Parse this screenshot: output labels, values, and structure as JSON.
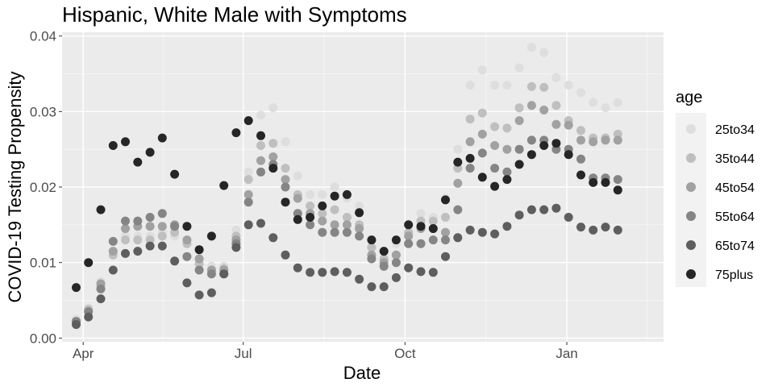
{
  "chart_data": {
    "type": "scatter",
    "title": "Hispanic, White Male with Symptoms",
    "xlabel": "Date",
    "ylabel": "COVID-19 Testing Propensity",
    "x_axis": {
      "type": "date",
      "range": [
        "2020-03-20",
        "2021-02-25"
      ],
      "ticks": [
        {
          "date": "2020-04-01",
          "label": "Apr"
        },
        {
          "date": "2020-07-01",
          "label": "Jul"
        },
        {
          "date": "2020-10-01",
          "label": "Oct"
        },
        {
          "date": "2021-01-01",
          "label": "Jan"
        }
      ]
    },
    "y_axis": {
      "range": [
        -0.0005,
        0.0405
      ],
      "ticks": [
        {
          "value": 0.0,
          "label": "0.00"
        },
        {
          "value": 0.01,
          "label": "0.01"
        },
        {
          "value": 0.02,
          "label": "0.02"
        },
        {
          "value": 0.03,
          "label": "0.03"
        },
        {
          "value": 0.04,
          "label": "0.04"
        }
      ]
    },
    "grid": true,
    "legend": {
      "title": "age",
      "position": "right"
    },
    "dates": [
      "2020-03-28",
      "2020-04-04",
      "2020-04-11",
      "2020-04-18",
      "2020-04-25",
      "2020-05-02",
      "2020-05-09",
      "2020-05-16",
      "2020-05-23",
      "2020-05-30",
      "2020-06-06",
      "2020-06-13",
      "2020-06-20",
      "2020-06-27",
      "2020-07-04",
      "2020-07-11",
      "2020-07-18",
      "2020-07-25",
      "2020-08-01",
      "2020-08-08",
      "2020-08-15",
      "2020-08-22",
      "2020-08-29",
      "2020-09-05",
      "2020-09-12",
      "2020-09-19",
      "2020-09-26",
      "2020-10-03",
      "2020-10-10",
      "2020-10-17",
      "2020-10-24",
      "2020-10-31",
      "2020-11-07",
      "2020-11-14",
      "2020-11-21",
      "2020-11-28",
      "2020-12-05",
      "2020-12-12",
      "2020-12-19",
      "2020-12-26",
      "2021-01-02",
      "2021-01-09",
      "2021-01-16",
      "2021-01-23",
      "2021-01-30"
    ],
    "series": [
      {
        "name": "25to34",
        "color": "#dedede",
        "values": [
          0.0025,
          0.004,
          0.0075,
          0.0115,
          0.0135,
          0.0135,
          0.0135,
          0.014,
          0.0135,
          0.013,
          0.01,
          0.0095,
          0.0095,
          0.0143,
          0.022,
          0.0295,
          0.0305,
          0.026,
          0.0215,
          0.019,
          0.019,
          0.02,
          0.0185,
          0.0175,
          0.013,
          0.0115,
          0.0125,
          0.015,
          0.0165,
          0.016,
          0.0185,
          0.025,
          0.0335,
          0.0355,
          0.0335,
          0.0335,
          0.0358,
          0.0385,
          0.0378,
          0.0345,
          0.0335,
          0.0325,
          0.0312,
          0.0305,
          0.0312
        ]
      },
      {
        "name": "35to44",
        "color": "#bfbfbf",
        "values": [
          0.0022,
          0.0038,
          0.007,
          0.011,
          0.013,
          0.013,
          0.013,
          0.0135,
          0.014,
          0.0125,
          0.0098,
          0.009,
          0.0092,
          0.0135,
          0.021,
          0.0255,
          0.0258,
          0.0225,
          0.019,
          0.0175,
          0.0165,
          0.017,
          0.016,
          0.015,
          0.012,
          0.0105,
          0.011,
          0.014,
          0.0155,
          0.0155,
          0.016,
          0.0225,
          0.029,
          0.0298,
          0.028,
          0.0278,
          0.0305,
          0.0333,
          0.0332,
          0.0308,
          0.0288,
          0.0275,
          0.0265,
          0.0265,
          0.027
        ]
      },
      {
        "name": "45to54",
        "color": "#a1a1a1",
        "values": [
          0.0022,
          0.0035,
          0.0072,
          0.0115,
          0.0145,
          0.0148,
          0.0148,
          0.0148,
          0.015,
          0.013,
          0.0105,
          0.009,
          0.009,
          0.013,
          0.019,
          0.0235,
          0.024,
          0.021,
          0.0185,
          0.0165,
          0.0155,
          0.015,
          0.015,
          0.0145,
          0.011,
          0.01,
          0.011,
          0.0135,
          0.0145,
          0.0145,
          0.014,
          0.0205,
          0.026,
          0.027,
          0.0255,
          0.025,
          0.0288,
          0.0308,
          0.0302,
          0.0283,
          0.0282,
          0.0262,
          0.026,
          0.0262,
          0.0262
        ]
      },
      {
        "name": "55to64",
        "color": "#858585",
        "values": [
          0.0022,
          0.0035,
          0.0065,
          0.0128,
          0.0155,
          0.0155,
          0.016,
          0.0165,
          0.0148,
          0.0108,
          0.009,
          0.0085,
          0.0085,
          0.0125,
          0.018,
          0.022,
          0.023,
          0.02,
          0.0165,
          0.015,
          0.014,
          0.014,
          0.014,
          0.0135,
          0.0105,
          0.0095,
          0.01,
          0.0125,
          0.0125,
          0.013,
          0.013,
          0.017,
          0.0225,
          0.0245,
          0.0225,
          0.022,
          0.025,
          0.0262,
          0.0262,
          0.025,
          0.025,
          0.0237,
          0.0212,
          0.0212,
          0.021
        ]
      },
      {
        "name": "65to74",
        "color": "#5e5e5e",
        "values": [
          0.0018,
          0.0028,
          0.0052,
          0.009,
          0.0112,
          0.0115,
          0.0122,
          0.0122,
          0.0102,
          0.0073,
          0.0057,
          0.006,
          0.0085,
          0.012,
          0.015,
          0.0152,
          0.0133,
          0.011,
          0.0093,
          0.0087,
          0.0087,
          0.0088,
          0.0087,
          0.0078,
          0.0068,
          0.0068,
          0.008,
          0.0093,
          0.0088,
          0.0087,
          0.0108,
          0.0133,
          0.0143,
          0.014,
          0.0138,
          0.0148,
          0.0163,
          0.017,
          0.017,
          0.0172,
          0.016,
          0.0147,
          0.0143,
          0.0147,
          0.0143
        ]
      },
      {
        "name": "75plus",
        "color": "#262626",
        "values": [
          0.0067,
          0.01,
          0.017,
          0.0255,
          0.026,
          0.0233,
          0.0246,
          0.0265,
          0.0217,
          0.0148,
          0.0117,
          0.0135,
          0.0202,
          0.0272,
          0.0288,
          0.0268,
          0.0225,
          0.018,
          0.0157,
          0.016,
          0.0175,
          0.0188,
          0.019,
          0.0166,
          0.013,
          0.0115,
          0.013,
          0.015,
          0.0148,
          0.0145,
          0.0183,
          0.0233,
          0.0238,
          0.0213,
          0.0201,
          0.021,
          0.023,
          0.0243,
          0.0255,
          0.0258,
          0.0243,
          0.0216,
          0.0206,
          0.0206,
          0.0196
        ]
      }
    ]
  }
}
